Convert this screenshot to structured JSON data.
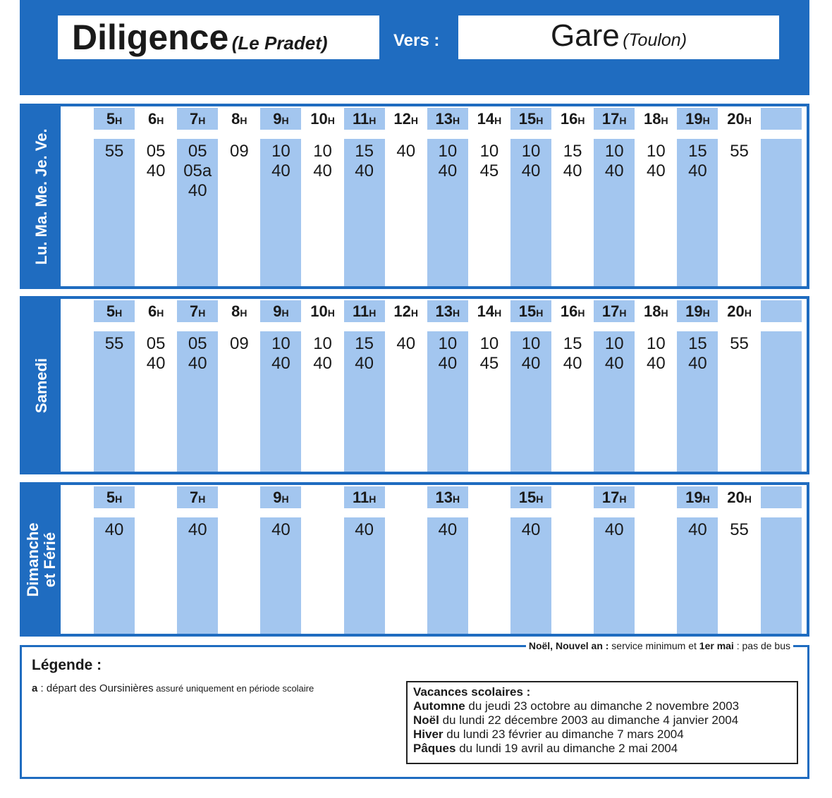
{
  "header": {
    "title": "Diligence",
    "origin": "(Le Pradet)",
    "to_label": "Vers :",
    "destination": "Gare",
    "destination_note": "(Toulon)"
  },
  "hour_unit": "H",
  "sections": [
    {
      "label": "Lu. Ma. Me. Je. Ve.",
      "hours": [
        "5",
        "6",
        "7",
        "8",
        "9",
        "10",
        "11",
        "12",
        "13",
        "14",
        "15",
        "16",
        "17",
        "18",
        "19",
        "20",
        null
      ],
      "times": [
        [
          "55"
        ],
        [
          "05",
          "40"
        ],
        [
          "05",
          "05a",
          "40"
        ],
        [
          "09"
        ],
        [
          "10",
          "40"
        ],
        [
          "10",
          "40"
        ],
        [
          "15",
          "40"
        ],
        [
          "40"
        ],
        [
          "10",
          "40"
        ],
        [
          "10",
          "45"
        ],
        [
          "10",
          "40"
        ],
        [
          "15",
          "40"
        ],
        [
          "10",
          "40"
        ],
        [
          "10",
          "40"
        ],
        [
          "15",
          "40"
        ],
        [
          "55"
        ],
        []
      ]
    },
    {
      "label": "Samedi",
      "hours": [
        "5",
        "6",
        "7",
        "8",
        "9",
        "10",
        "11",
        "12",
        "13",
        "14",
        "15",
        "16",
        "17",
        "18",
        "19",
        "20",
        null
      ],
      "times": [
        [
          "55"
        ],
        [
          "05",
          "40"
        ],
        [
          "05",
          "40"
        ],
        [
          "09"
        ],
        [
          "10",
          "40"
        ],
        [
          "10",
          "40"
        ],
        [
          "15",
          "40"
        ],
        [
          "40"
        ],
        [
          "10",
          "40"
        ],
        [
          "10",
          "45"
        ],
        [
          "10",
          "40"
        ],
        [
          "15",
          "40"
        ],
        [
          "10",
          "40"
        ],
        [
          "10",
          "40"
        ],
        [
          "15",
          "40"
        ],
        [
          "55"
        ],
        []
      ]
    },
    {
      "label": "Dimanche et Férié",
      "hours": [
        "5",
        null,
        "7",
        null,
        "9",
        null,
        "11",
        null,
        "13",
        null,
        "15",
        null,
        "17",
        null,
        "19",
        "20",
        null
      ],
      "times": [
        [
          "40"
        ],
        [],
        [
          "40"
        ],
        [],
        [
          "40"
        ],
        [],
        [
          "40"
        ],
        [],
        [
          "40"
        ],
        [],
        [
          "40"
        ],
        [],
        [
          "40"
        ],
        [],
        [
          "40"
        ],
        [
          "55"
        ],
        []
      ]
    }
  ],
  "notice": {
    "part1": "Noël, Nouvel an :",
    "part2": " service minimum et ",
    "part3": "1er mai",
    "part4": " : pas de bus"
  },
  "legend": {
    "title": "Légende :",
    "key": "a",
    "text": " : départ des Oursinières",
    "note": " assuré uniquement  en période scolaire"
  },
  "holidays": {
    "title": "Vacances scolaires  :",
    "items": [
      {
        "name": "Automne",
        "text": " du jeudi 23 octobre au dimanche 2 novembre 2003"
      },
      {
        "name": "Noël",
        "text": " du lundi 22 décembre 2003 au dimanche 4  janvier 2004"
      },
      {
        "name": "Hiver",
        "text": " du lundi 23 février au  dimanche 7 mars 2004"
      },
      {
        "name": "Pâques",
        "text": " du lundi 19 avril au  dimanche 2 mai 2004"
      }
    ]
  }
}
